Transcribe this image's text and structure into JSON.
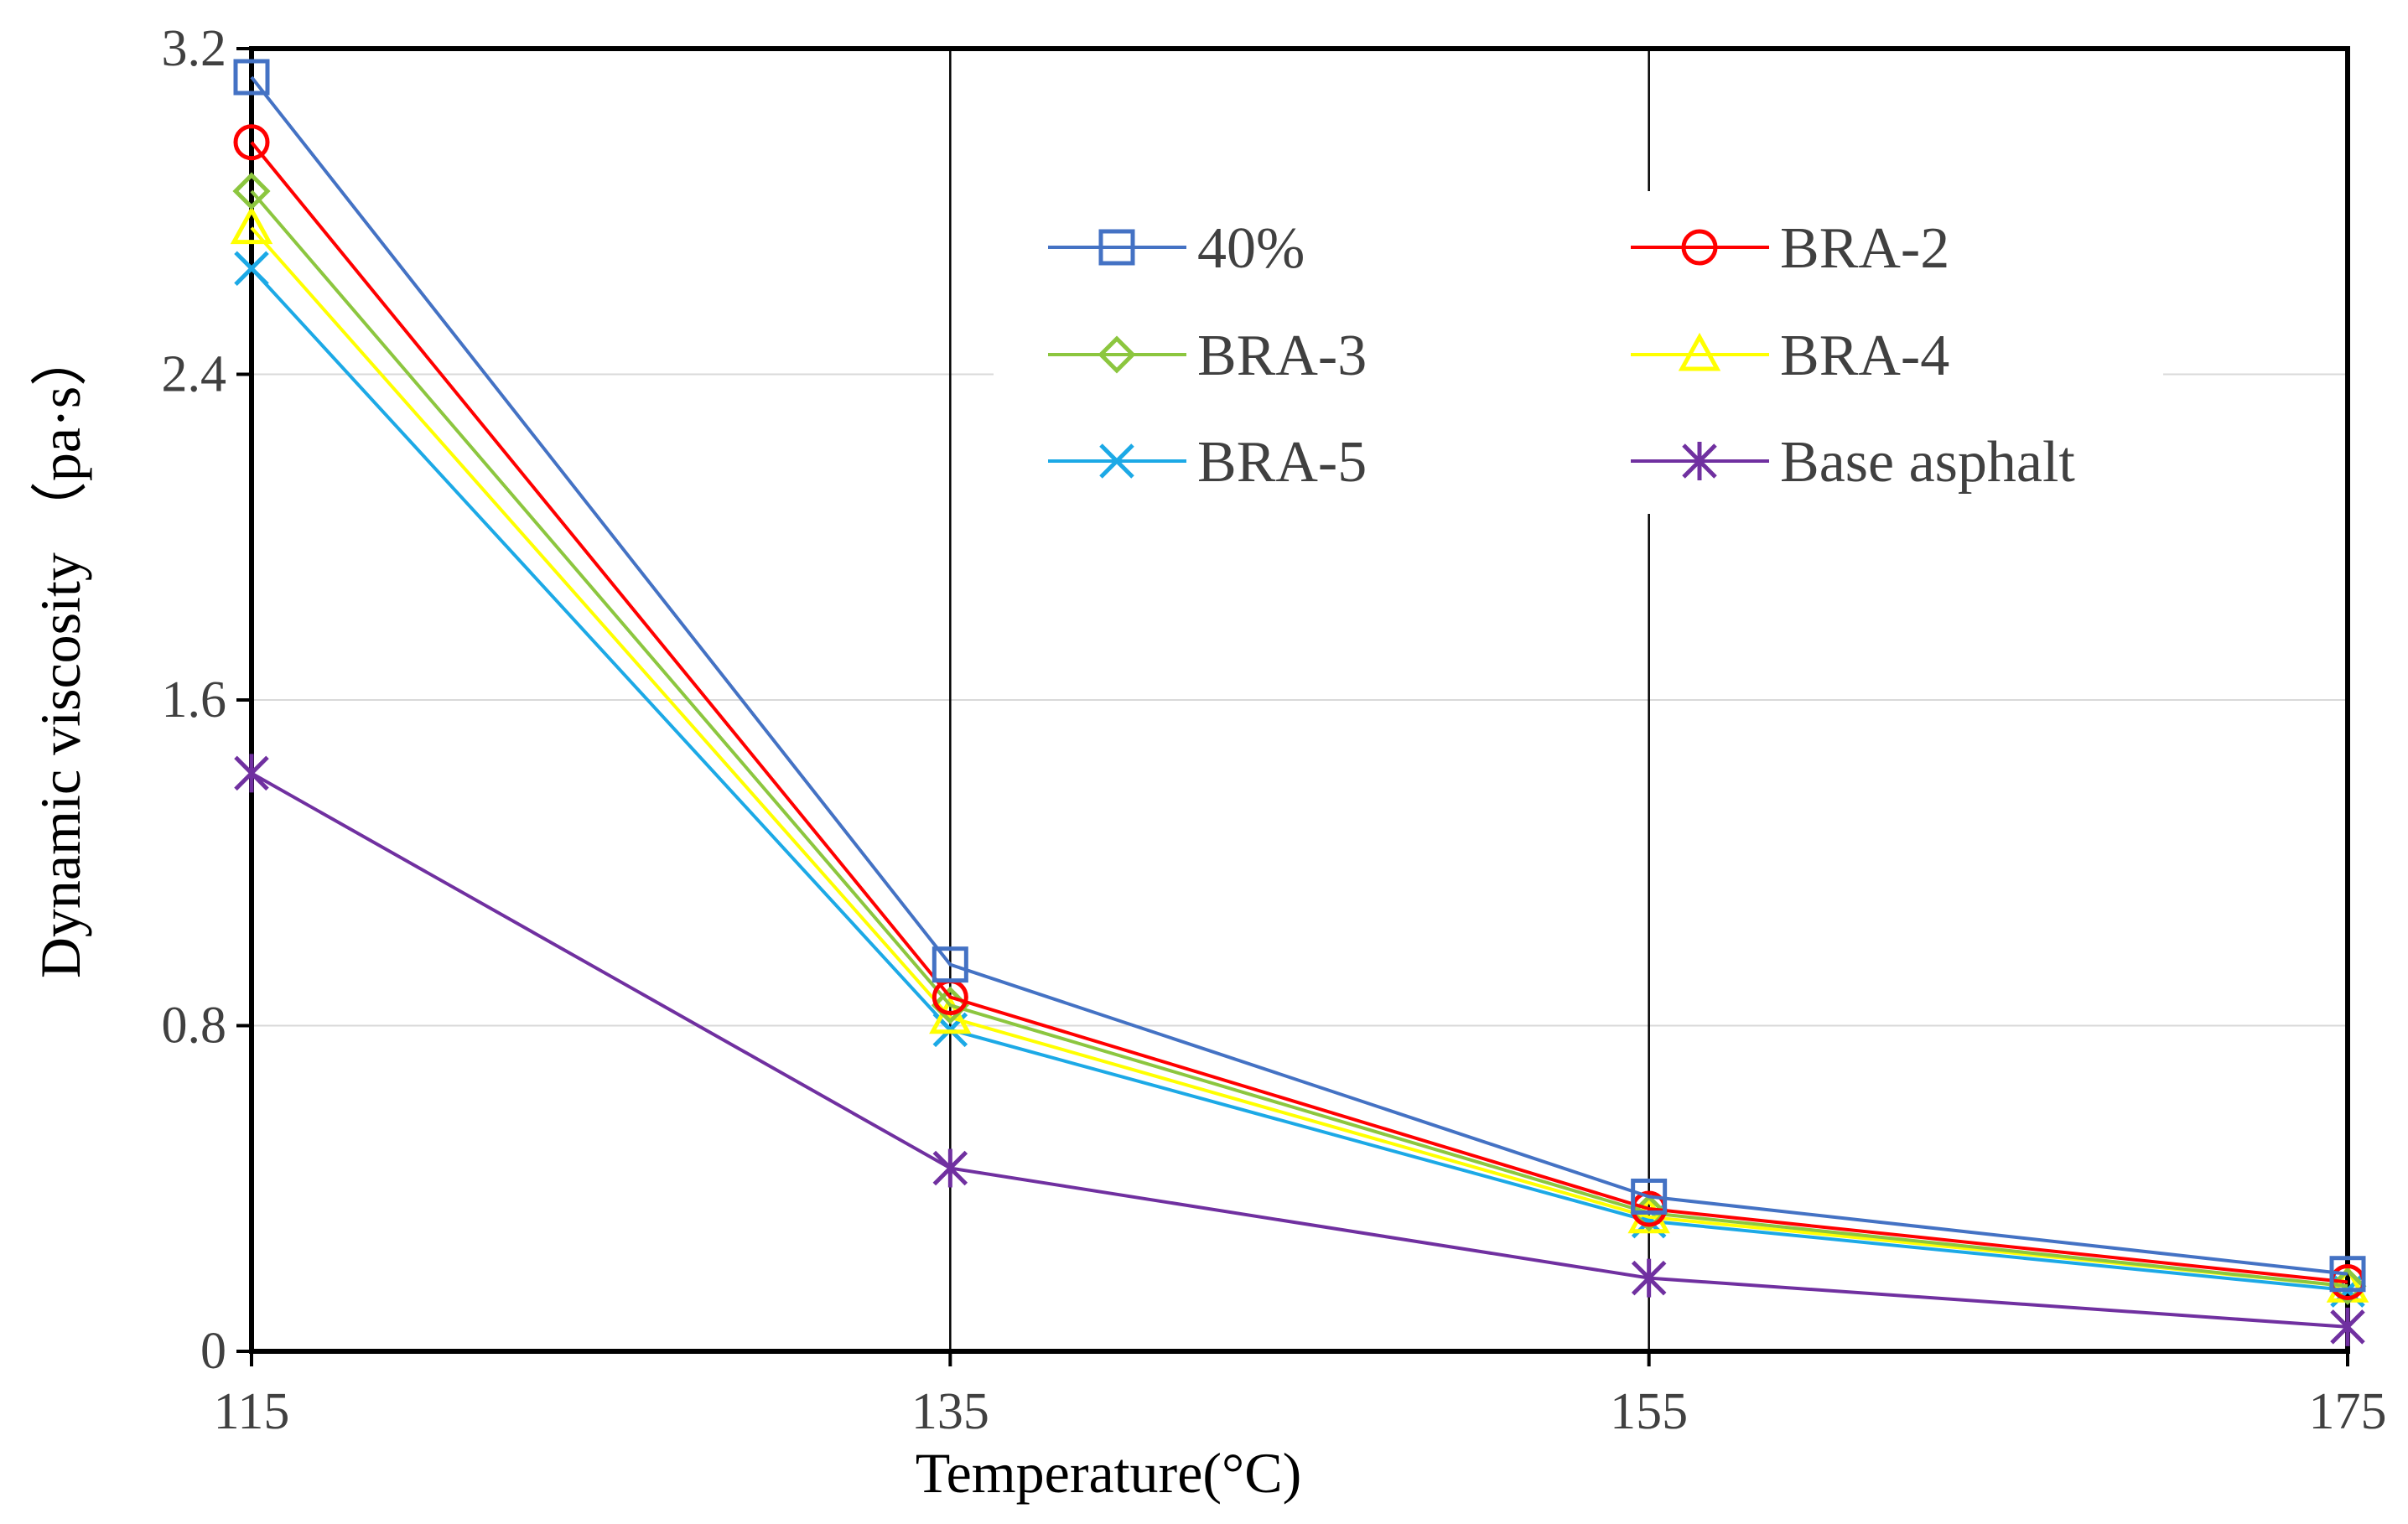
{
  "chart_data": {
    "type": "line",
    "title": "",
    "xlabel": "Temperature(°C)",
    "ylabel": "Dynamic viscosity （pa·s）",
    "x": [
      115,
      135,
      155,
      175
    ],
    "xticks": [
      "115",
      "135",
      "155",
      "175"
    ],
    "xlim": [
      115,
      175
    ],
    "ylim": [
      0,
      3.2
    ],
    "yticks": [
      "0",
      "0.8",
      "1.6",
      "2.4",
      "3.2"
    ],
    "grid": "horizontal light gridlines; vertical lines at 135 and 155",
    "legend_position": "top-right",
    "series": [
      {
        "name": "40%",
        "values": [
          3.13,
          0.95,
          0.38,
          0.19
        ],
        "color": "#4472C4",
        "marker": "square"
      },
      {
        "name": "BRA-2",
        "values": [
          2.97,
          0.87,
          0.35,
          0.17
        ],
        "color": "#FF0000",
        "marker": "circle"
      },
      {
        "name": "BRA-3",
        "values": [
          2.85,
          0.85,
          0.34,
          0.16
        ],
        "color": "#8CC63F",
        "marker": "diamond"
      },
      {
        "name": "BRA-4",
        "values": [
          2.76,
          0.82,
          0.33,
          0.16
        ],
        "color": "#FFFF00",
        "marker": "triangle"
      },
      {
        "name": "BRA-5",
        "values": [
          2.66,
          0.79,
          0.32,
          0.15
        ],
        "color": "#1CA9E6",
        "marker": "x"
      },
      {
        "name": "Base asphalt",
        "values": [
          1.42,
          0.45,
          0.18,
          0.06
        ],
        "color": "#7030A0",
        "marker": "star"
      }
    ]
  }
}
